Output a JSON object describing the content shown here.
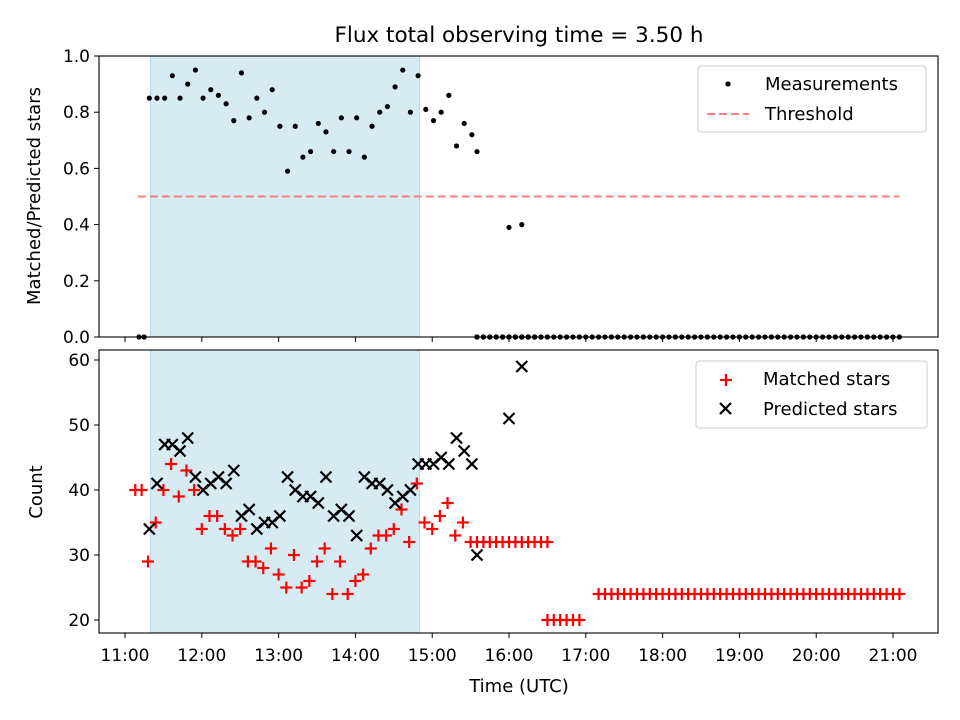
{
  "chart_data": [
    {
      "type": "scatter",
      "title": "Flux total observing time = 3.50 h",
      "ylabel": "Matched/Predicted stars",
      "ylim": [
        0.0,
        1.0
      ],
      "yticks": [
        "0.0",
        "0.2",
        "0.4",
        "0.6",
        "0.8",
        "1.0"
      ],
      "shaded_span": [
        "11:20",
        "14:50"
      ],
      "legend_position": "top-right",
      "series": [
        {
          "name": "Measurements",
          "marker": "dot",
          "color": "#000000",
          "points": [
            [
              "11:11",
              0
            ],
            [
              "11:15",
              0
            ],
            [
              "11:19",
              0.85
            ],
            [
              "11:25",
              0.85
            ],
            [
              "11:31",
              0.85
            ],
            [
              "11:37",
              0.93
            ],
            [
              "11:43",
              0.85
            ],
            [
              "11:49",
              0.9
            ],
            [
              "11:55",
              0.95
            ],
            [
              "12:01",
              0.85
            ],
            [
              "12:07",
              0.88
            ],
            [
              "12:13",
              0.86
            ],
            [
              "12:19",
              0.83
            ],
            [
              "12:25",
              0.77
            ],
            [
              "12:31",
              0.94
            ],
            [
              "12:37",
              0.78
            ],
            [
              "12:43",
              0.85
            ],
            [
              "12:49",
              0.8
            ],
            [
              "12:55",
              0.88
            ],
            [
              "13:01",
              0.75
            ],
            [
              "13:07",
              0.59
            ],
            [
              "13:13",
              0.75
            ],
            [
              "13:19",
              0.64
            ],
            [
              "13:25",
              0.66
            ],
            [
              "13:31",
              0.76
            ],
            [
              "13:37",
              0.73
            ],
            [
              "13:43",
              0.66
            ],
            [
              "13:49",
              0.78
            ],
            [
              "13:55",
              0.66
            ],
            [
              "14:01",
              0.78
            ],
            [
              "14:07",
              0.64
            ],
            [
              "14:13",
              0.75
            ],
            [
              "14:19",
              0.8
            ],
            [
              "14:25",
              0.82
            ],
            [
              "14:31",
              0.89
            ],
            [
              "14:37",
              0.95
            ],
            [
              "14:43",
              0.8
            ],
            [
              "14:49",
              0.93
            ],
            [
              "14:55",
              0.81
            ],
            [
              "15:01",
              0.77
            ],
            [
              "15:07",
              0.8
            ],
            [
              "15:13",
              0.86
            ],
            [
              "15:19",
              0.68
            ],
            [
              "15:25",
              0.76
            ],
            [
              "15:31",
              0.72
            ],
            [
              "15:35",
              0
            ],
            [
              "15:40",
              0
            ],
            [
              "15:45",
              0
            ],
            [
              "15:50",
              0
            ],
            [
              "15:55",
              0
            ],
            [
              "16:00",
              0
            ],
            [
              "16:05",
              0
            ],
            [
              "16:10",
              0
            ],
            [
              "16:15",
              0
            ],
            [
              "16:20",
              0
            ],
            [
              "16:25",
              0
            ],
            [
              "15:35",
              0.66
            ],
            [
              "16:00",
              0
            ],
            [
              "16:05",
              0
            ],
            [
              "16:10",
              0
            ],
            [
              "16:15",
              0
            ],
            [
              "16:00",
              0.39
            ],
            [
              "16:05",
              0
            ],
            [
              "16:10",
              0.4
            ]
          ]
        },
        {
          "name": "Threshold",
          "style": "dashed",
          "color": "#ff7f7f",
          "x": [
            "11:10",
            "21:05"
          ],
          "y": [
            0.5,
            0.5
          ]
        }
      ]
    },
    {
      "type": "scatter",
      "xlabel": "Time (UTC)",
      "ylabel": "Count",
      "ylim": [
        18,
        61
      ],
      "yticks": [
        "20",
        "30",
        "40",
        "50",
        "60"
      ],
      "xticks": [
        "11:00",
        "12:00",
        "13:00",
        "14:00",
        "15:00",
        "16:00",
        "17:00",
        "18:00",
        "19:00",
        "20:00",
        "21:00"
      ],
      "shaded_span": [
        "11:20",
        "14:50"
      ],
      "legend_position": "top-right",
      "series": [
        {
          "name": "Matched stars",
          "marker": "plus",
          "color": "#ff0000",
          "points": [
            [
              "11:08",
              40
            ],
            [
              "11:13",
              40
            ],
            [
              "11:18",
              29
            ],
            [
              "11:24",
              35
            ],
            [
              "11:30",
              40
            ],
            [
              "11:36",
              44
            ],
            [
              "11:42",
              39
            ],
            [
              "11:48",
              43
            ],
            [
              "11:54",
              40
            ],
            [
              "11:60",
              34
            ],
            [
              "12:06",
              36
            ],
            [
              "12:12",
              36
            ],
            [
              "12:18",
              34
            ],
            [
              "12:24",
              33
            ],
            [
              "12:30",
              34
            ],
            [
              "12:36",
              29
            ],
            [
              "12:42",
              29
            ],
            [
              "12:48",
              28
            ],
            [
              "12:54",
              31
            ],
            [
              "13:00",
              27
            ],
            [
              "13:06",
              25
            ],
            [
              "13:12",
              30
            ],
            [
              "13:18",
              25
            ],
            [
              "13:24",
              26
            ],
            [
              "13:30",
              29
            ],
            [
              "13:36",
              31
            ],
            [
              "13:42",
              24
            ],
            [
              "13:48",
              29
            ],
            [
              "13:54",
              24
            ],
            [
              "14:00",
              26
            ],
            [
              "14:06",
              27
            ],
            [
              "14:12",
              31
            ],
            [
              "14:18",
              33
            ],
            [
              "14:24",
              33
            ],
            [
              "14:30",
              34
            ],
            [
              "14:36",
              37
            ],
            [
              "14:42",
              32
            ],
            [
              "14:48",
              41
            ],
            [
              "14:54",
              35
            ],
            [
              "15:00",
              34
            ],
            [
              "15:06",
              36
            ],
            [
              "15:12",
              38
            ],
            [
              "15:18",
              33
            ],
            [
              "15:24",
              35
            ],
            [
              "15:30",
              32
            ]
          ]
        },
        {
          "name": "Predicted stars",
          "marker": "x",
          "color": "#000000",
          "points": [
            [
              "11:19",
              34
            ],
            [
              "11:25",
              41
            ],
            [
              "11:31",
              47
            ],
            [
              "11:37",
              47
            ],
            [
              "11:43",
              46
            ],
            [
              "11:49",
              48
            ],
            [
              "11:55",
              42
            ],
            [
              "12:01",
              40
            ],
            [
              "12:07",
              41
            ],
            [
              "12:13",
              42
            ],
            [
              "12:19",
              41
            ],
            [
              "12:25",
              43
            ],
            [
              "12:31",
              36
            ],
            [
              "12:37",
              37
            ],
            [
              "12:43",
              34
            ],
            [
              "12:49",
              35
            ],
            [
              "12:55",
              35
            ],
            [
              "13:01",
              36
            ],
            [
              "13:07",
              42
            ],
            [
              "13:13",
              40
            ],
            [
              "13:19",
              39
            ],
            [
              "13:25",
              39
            ],
            [
              "13:31",
              38
            ],
            [
              "13:37",
              42
            ],
            [
              "13:43",
              36
            ],
            [
              "13:49",
              37
            ],
            [
              "13:55",
              36
            ],
            [
              "14:01",
              33
            ],
            [
              "14:07",
              42
            ],
            [
              "14:13",
              41
            ],
            [
              "14:19",
              41
            ],
            [
              "14:25",
              40
            ],
            [
              "14:31",
              38
            ],
            [
              "14:37",
              39
            ],
            [
              "14:43",
              40
            ],
            [
              "14:49",
              44
            ],
            [
              "14:55",
              44
            ],
            [
              "15:01",
              44
            ],
            [
              "15:07",
              45
            ],
            [
              "15:13",
              44
            ],
            [
              "15:19",
              48
            ],
            [
              "15:25",
              46
            ],
            [
              "15:31",
              44
            ],
            [
              "15:35",
              30
            ],
            [
              "16:00",
              51
            ],
            [
              "16:10",
              59
            ]
          ]
        }
      ]
    }
  ]
}
